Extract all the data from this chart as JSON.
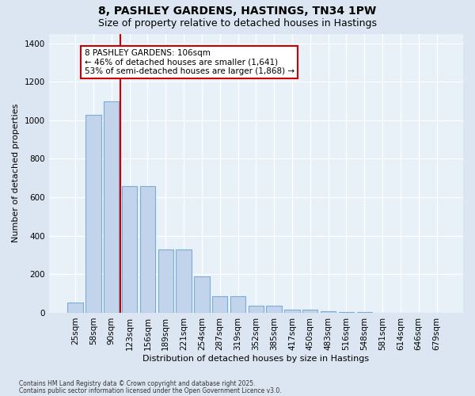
{
  "title": "8, PASHLEY GARDENS, HASTINGS, TN34 1PW",
  "subtitle": "Size of property relative to detached houses in Hastings",
  "xlabel": "Distribution of detached houses by size in Hastings",
  "ylabel": "Number of detached properties",
  "footer1": "Contains HM Land Registry data © Crown copyright and database right 2025.",
  "footer2": "Contains public sector information licensed under the Open Government Licence v3.0.",
  "categories": [
    "25sqm",
    "58sqm",
    "90sqm",
    "123sqm",
    "156sqm",
    "189sqm",
    "221sqm",
    "254sqm",
    "287sqm",
    "319sqm",
    "352sqm",
    "385sqm",
    "417sqm",
    "450sqm",
    "483sqm",
    "516sqm",
    "548sqm",
    "581sqm",
    "614sqm",
    "646sqm",
    "679sqm"
  ],
  "values": [
    55,
    1030,
    1100,
    660,
    660,
    330,
    330,
    190,
    85,
    85,
    35,
    35,
    15,
    15,
    10,
    5,
    5,
    0,
    0,
    0,
    0
  ],
  "bar_color": "#c2d4eb",
  "bar_edge_color": "#7aadd4",
  "background_color": "#dce6f2",
  "plot_bg_color": "#e8f0f8",
  "red_line_x": 2.5,
  "annotation_line1": "8 PASHLEY GARDENS: 106sqm",
  "annotation_line2": "← 46% of detached houses are smaller (1,641)",
  "annotation_line3": "53% of semi-detached houses are larger (1,868) →",
  "annotation_box_facecolor": "#ffffff",
  "annotation_box_edgecolor": "#cc0000",
  "ylim": [
    0,
    1450
  ],
  "yticks": [
    0,
    200,
    400,
    600,
    800,
    1000,
    1200,
    1400
  ],
  "title_fontsize": 10,
  "subtitle_fontsize": 9,
  "ylabel_fontsize": 8,
  "xlabel_fontsize": 8,
  "tick_fontsize": 7.5,
  "ann_fontsize": 7.5
}
